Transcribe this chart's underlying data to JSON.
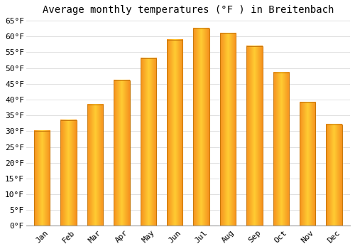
{
  "title": "Average monthly temperatures (°F ) in Breitenbach",
  "months": [
    "Jan",
    "Feb",
    "Mar",
    "Apr",
    "May",
    "Jun",
    "Jul",
    "Aug",
    "Sep",
    "Oct",
    "Nov",
    "Dec"
  ],
  "values": [
    30,
    33.5,
    38.5,
    46,
    53,
    59,
    62.5,
    61,
    57,
    48.5,
    39,
    32
  ],
  "bar_color_center": "#FFCC00",
  "bar_color_edge": "#F5901E",
  "background_color": "#FFFFFF",
  "ylim": [
    0,
    65
  ],
  "yticks": [
    0,
    5,
    10,
    15,
    20,
    25,
    30,
    35,
    40,
    45,
    50,
    55,
    60,
    65
  ],
  "ytick_labels": [
    "0°F",
    "5°F",
    "10°F",
    "15°F",
    "20°F",
    "25°F",
    "30°F",
    "35°F",
    "40°F",
    "45°F",
    "50°F",
    "55°F",
    "60°F",
    "65°F"
  ],
  "grid_color": "#E0E0E0",
  "title_fontsize": 10,
  "tick_fontsize": 8,
  "bar_width": 0.6
}
